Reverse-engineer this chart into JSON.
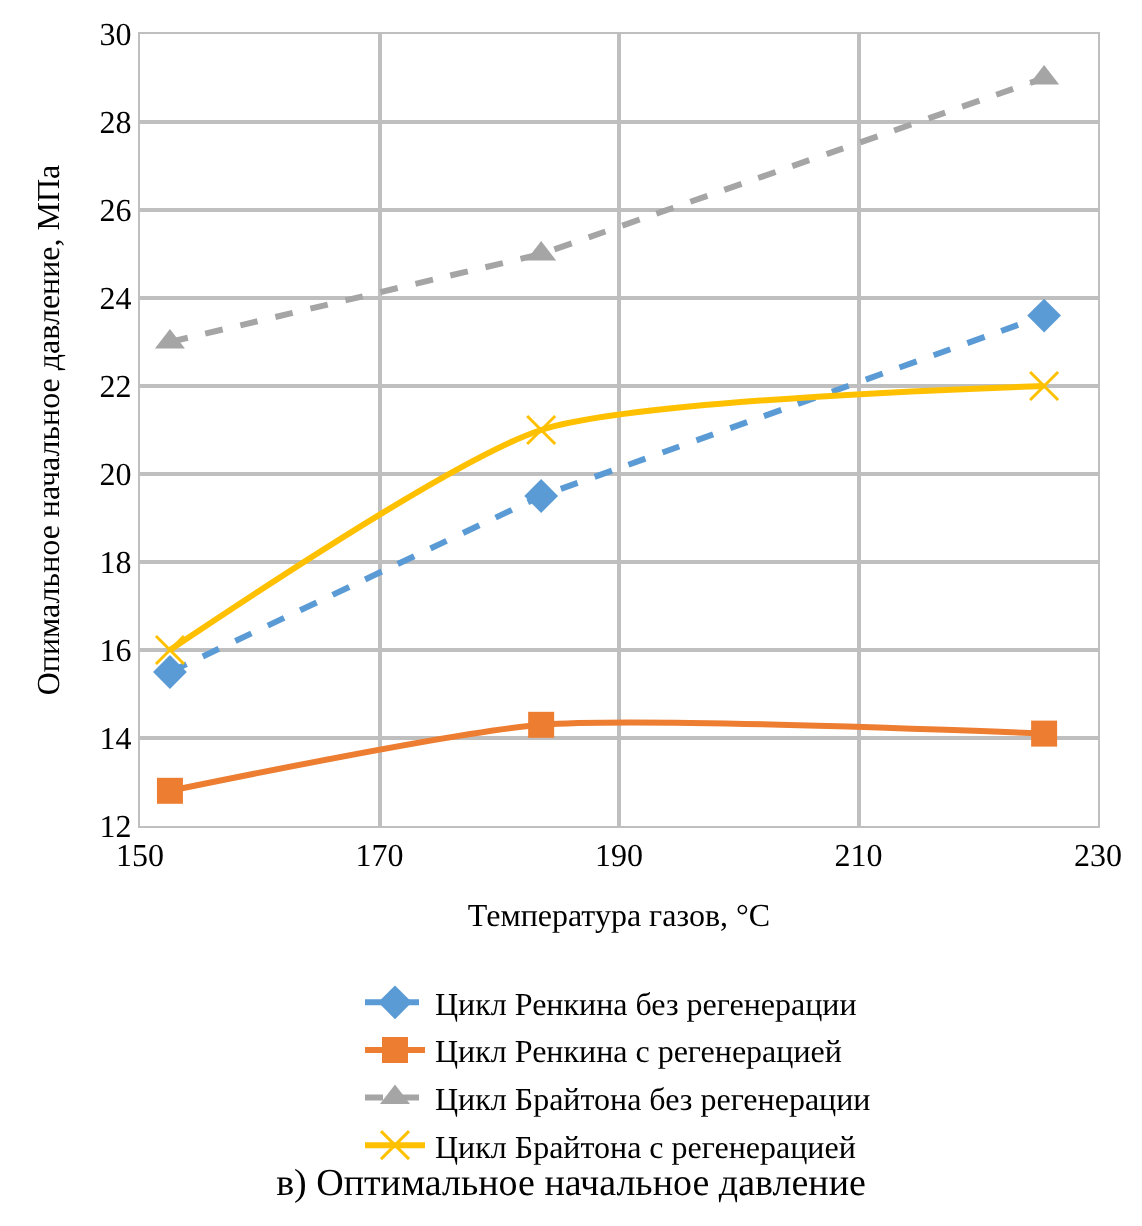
{
  "chart_data": {
    "type": "line",
    "title": "в) Оптимальное начальное давление",
    "xlabel": "Температура газов, °C",
    "ylabel": "Опимальное начальное давление, МПа",
    "x": [
      152.5,
      183.5,
      225.5
    ],
    "series": [
      {
        "name": "Цикл Ренкина без регенерации",
        "color": "#5b9bd5",
        "values": [
          15.5,
          19.5,
          23.6
        ],
        "marker": "diamond",
        "line_style": "dashed"
      },
      {
        "name": "Цикл Ренкина с регенерацией",
        "color": "#ed7d31",
        "values": [
          12.8,
          14.3,
          14.1
        ],
        "marker": "square",
        "line_style": "solid"
      },
      {
        "name": "Цикл Брайтона без регенерации",
        "color": "#a5a5a5",
        "values": [
          23.0,
          25.0,
          29.0
        ],
        "marker": "triangle",
        "line_style": "dashed"
      },
      {
        "name": "Цикл Брайтона с регенерацией",
        "color": "#ffc000",
        "values": [
          16.0,
          21.0,
          22.0
        ],
        "marker": "cross",
        "line_style": "solid"
      }
    ],
    "xlim": [
      150,
      230
    ],
    "xticks": [
      150,
      170,
      190,
      210,
      230
    ],
    "ylim": [
      12,
      30
    ],
    "yticks": [
      12,
      14,
      16,
      18,
      20,
      22,
      24,
      26,
      28,
      30
    ],
    "grid": true,
    "legend": "bottom"
  }
}
